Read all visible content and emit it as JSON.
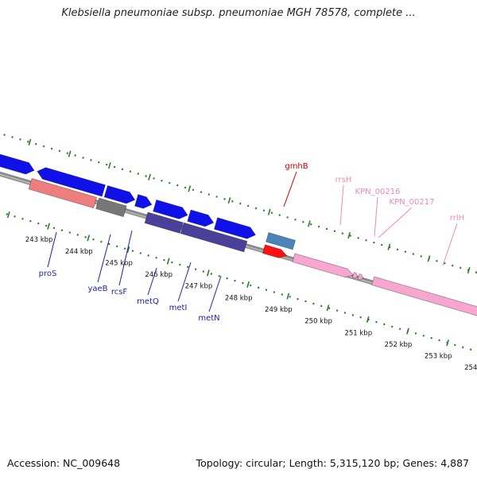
{
  "title": "Klebsiella pneumoniae subsp. pneumoniae MGH 78578, complete ...",
  "footer": {
    "accession": "Accession: NC_009648",
    "summary": "Topology: circular; Length: 5,315,120 bp; Genes: 4,887"
  },
  "colors": {
    "backbone": "#888888",
    "tick_dots": "#2e7d2e",
    "cds_blue": "#1010e8",
    "cds_navy": "#4a4099",
    "rrna_pink": "#f7a6cf",
    "trna_red": "#ff1010",
    "label_red": "#cc0000",
    "label_navy": "#2222aa",
    "label_pink": "#ee88bb"
  },
  "ticks": [
    {
      "label": "243 kbp",
      "kbp": 243
    },
    {
      "label": "244 kbp",
      "kbp": 244
    },
    {
      "label": "245 kbp",
      "kbp": 245
    },
    {
      "label": "246 kbp",
      "kbp": 246
    },
    {
      "label": "247 kbp",
      "kbp": 247
    },
    {
      "label": "248 kbp",
      "kbp": 248
    },
    {
      "label": "249 kbp",
      "kbp": 249
    },
    {
      "label": "250 kbp",
      "kbp": 250
    },
    {
      "label": "251 kbp",
      "kbp": 251
    },
    {
      "label": "252 kbp",
      "kbp": 252
    },
    {
      "label": "253 kbp",
      "kbp": 253
    },
    {
      "label": "254 kbp",
      "kbp": 254
    }
  ],
  "genes": [
    {
      "label": "proS",
      "type": "cds",
      "strand": "reverse"
    },
    {
      "label": "yaeB",
      "type": "cds",
      "strand": "reverse"
    },
    {
      "label": "rcsF",
      "type": "cds",
      "strand": "reverse"
    },
    {
      "label": "metQ",
      "type": "cds",
      "strand": "reverse"
    },
    {
      "label": "metI",
      "type": "cds",
      "strand": "reverse"
    },
    {
      "label": "metN",
      "type": "cds",
      "strand": "reverse"
    },
    {
      "label": "gmhB",
      "type": "cds",
      "strand": "forward"
    },
    {
      "label": "rrsH",
      "type": "rrna",
      "strand": "forward"
    },
    {
      "label": "KPN_00216",
      "type": "trna",
      "strand": "forward"
    },
    {
      "label": "KPN_00217",
      "type": "trna",
      "strand": "forward"
    },
    {
      "label": "rrlH",
      "type": "rrna",
      "strand": "forward"
    }
  ]
}
